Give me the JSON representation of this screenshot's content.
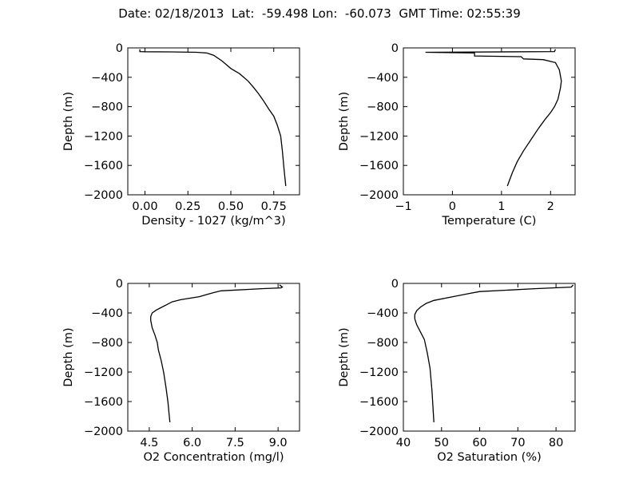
{
  "title": "Date: 02/18/2013  Lat:  -59.498 Lon:  -60.073  GMT Time: 02:55:39",
  "chart_data": [
    {
      "type": "line",
      "xlabel": "Density - 1027 (kg/m^3)",
      "ylabel": "Depth (m)",
      "xlim": [
        -0.1,
        0.9
      ],
      "ylim": [
        -2000,
        0
      ],
      "xticks": [
        "0.00",
        "0.25",
        "0.50",
        "0.75"
      ],
      "xtick_values": [
        0,
        0.25,
        0.5,
        0.75
      ],
      "yticks": [
        "0",
        "−400",
        "−800",
        "−1200",
        "−1600",
        "−2000"
      ],
      "ytick_values": [
        0,
        -400,
        -800,
        -1200,
        -1600,
        -2000
      ],
      "series": [
        {
          "x": [
            -0.03,
            -0.03,
            0.0,
            0.15,
            0.3,
            0.36,
            0.4,
            0.45,
            0.5,
            0.55,
            0.6,
            0.63,
            0.66,
            0.69,
            0.72,
            0.75,
            0.77,
            0.79,
            0.8,
            0.81,
            0.82
          ],
          "y": [
            -20,
            -50,
            -52,
            -54,
            -60,
            -70,
            -100,
            -180,
            -280,
            -350,
            -450,
            -530,
            -620,
            -720,
            -830,
            -930,
            -1050,
            -1200,
            -1400,
            -1650,
            -1880
          ]
        }
      ]
    },
    {
      "type": "line",
      "xlabel": "Temperature (C)",
      "ylabel": "Depth (m)",
      "xlim": [
        -1,
        2.5
      ],
      "ylim": [
        -2000,
        0
      ],
      "xticks": [
        "−1",
        "0",
        "1",
        "2"
      ],
      "xtick_values": [
        -1,
        0,
        1,
        2
      ],
      "yticks": [
        "0",
        "−400",
        "−800",
        "−1200",
        "−1600",
        "−2000"
      ],
      "ytick_values": [
        0,
        -400,
        -800,
        -1200,
        -1600,
        -2000
      ],
      "series": [
        {
          "x": [
            2.1,
            2.08,
            -0.55,
            0.45,
            0.45,
            1.4,
            1.45,
            1.85,
            2.1,
            2.18,
            2.22,
            2.2,
            2.15,
            2.08,
            2.0,
            1.88,
            1.75,
            1.6,
            1.45,
            1.32,
            1.22,
            1.12
          ],
          "y": [
            -20,
            -50,
            -60,
            -70,
            -110,
            -120,
            -150,
            -160,
            -200,
            -300,
            -450,
            -550,
            -700,
            -800,
            -880,
            -980,
            -1100,
            -1250,
            -1400,
            -1550,
            -1700,
            -1880
          ]
        }
      ]
    },
    {
      "type": "line",
      "xlabel": "O2 Concentration (mg/l)",
      "ylabel": "Depth (m)",
      "xlim": [
        3.75,
        9.75
      ],
      "ylim": [
        -2000,
        0
      ],
      "xticks": [
        "4.5",
        "6.0",
        "7.5",
        "9.0"
      ],
      "xtick_values": [
        4.5,
        6.0,
        7.5,
        9.0
      ],
      "yticks": [
        "0",
        "−400",
        "−800",
        "−1200",
        "−1600",
        "−2000"
      ],
      "ytick_values": [
        0,
        -400,
        -800,
        -1200,
        -1600,
        -2000
      ],
      "series": [
        {
          "x": [
            9.05,
            9.15,
            9.1,
            8.5,
            7.0,
            6.7,
            6.25,
            5.6,
            5.3,
            5.1,
            4.9,
            4.75,
            4.6,
            4.55,
            4.55,
            4.6,
            4.7,
            4.78,
            4.82,
            4.92,
            5.0,
            5.08,
            5.15,
            5.22
          ],
          "y": [
            -20,
            -50,
            -60,
            -70,
            -100,
            -130,
            -180,
            -220,
            -250,
            -290,
            -330,
            -360,
            -400,
            -450,
            -500,
            -600,
            -700,
            -800,
            -900,
            -1050,
            -1200,
            -1400,
            -1600,
            -1880
          ]
        }
      ]
    },
    {
      "type": "line",
      "xlabel": "O2 Saturation (%)",
      "ylabel": "Depth (m)",
      "xlim": [
        40,
        85
      ],
      "ylim": [
        -2000,
        0
      ],
      "xticks": [
        "40",
        "50",
        "60",
        "70",
        "80"
      ],
      "xtick_values": [
        40,
        50,
        60,
        70,
        80
      ],
      "yticks": [
        "0",
        "−400",
        "−800",
        "−1200",
        "−1600",
        "−2000"
      ],
      "ytick_values": [
        0,
        -400,
        -800,
        -1200,
        -1600,
        -2000
      ],
      "series": [
        {
          "x": [
            84.5,
            84.0,
            75.0,
            60.0,
            57.0,
            53.0,
            48.0,
            46.0,
            44.5,
            43.5,
            43.0,
            43.0,
            43.5,
            44.5,
            45.5,
            46.3,
            47.0,
            47.5,
            48.0
          ],
          "y": [
            -20,
            -50,
            -70,
            -110,
            -140,
            -180,
            -230,
            -270,
            -320,
            -370,
            -420,
            -480,
            -560,
            -660,
            -760,
            -950,
            -1150,
            -1450,
            -1880
          ]
        }
      ]
    }
  ]
}
